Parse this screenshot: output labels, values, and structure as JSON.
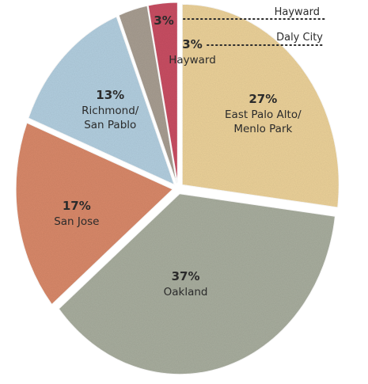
{
  "chart_data": {
    "type": "pie",
    "title": "",
    "slices": [
      {
        "label": "East Palo Alto/\nMenlo Park",
        "value": 27,
        "pct_label": "27%",
        "color": "#ecd29a"
      },
      {
        "label": "Oakland",
        "value": 37,
        "pct_label": "37%",
        "color": "#a9ae9f"
      },
      {
        "label": "San Jose",
        "value": 17,
        "pct_label": "17%",
        "color": "#d9896a"
      },
      {
        "label": "Richmond/\nSan Pablo",
        "value": 13,
        "pct_label": "13%",
        "color": "#b3cfe0"
      },
      {
        "label": "",
        "value": 3,
        "pct_label": "3%",
        "color": "#a89e92"
      },
      {
        "label": "Hayward",
        "value": 3,
        "pct_label": "3%",
        "color": "#c94f63"
      }
    ],
    "callouts": [
      {
        "label": "Hayward"
      },
      {
        "label": "Daly City"
      }
    ]
  }
}
